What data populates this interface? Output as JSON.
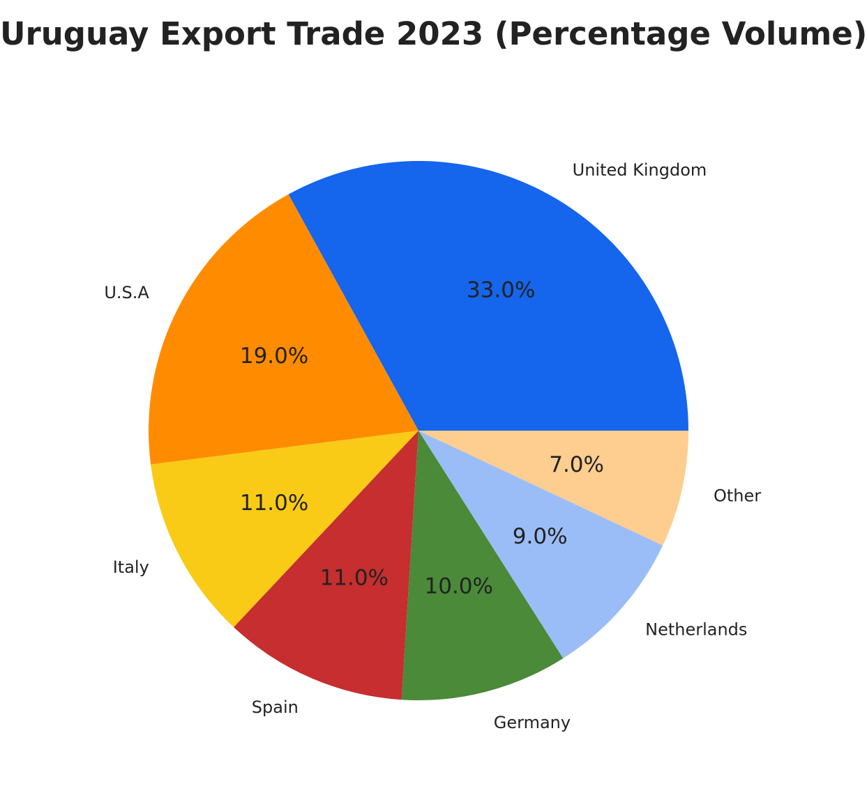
{
  "chart_data": {
    "type": "pie",
    "title": "Uruguay Export Trade 2023 (Percentage Volume)",
    "start_angle_deg": 0,
    "direction": "counterclockwise",
    "slices": [
      {
        "label": "United Kingdom",
        "value": 33.0,
        "pct_label": "33.0%",
        "color": "#1565ed"
      },
      {
        "label": "U.S.A",
        "value": 19.0,
        "pct_label": "19.0%",
        "color": "#ff8c00"
      },
      {
        "label": "Italy",
        "value": 11.0,
        "pct_label": "11.0%",
        "color": "#f9cb16"
      },
      {
        "label": "Spain",
        "value": 11.0,
        "pct_label": "11.0%",
        "color": "#c62e2f"
      },
      {
        "label": "Germany",
        "value": 10.0,
        "pct_label": "10.0%",
        "color": "#4a8a39"
      },
      {
        "label": "Netherlands",
        "value": 9.0,
        "pct_label": "9.0%",
        "color": "#9bbdf7"
      },
      {
        "label": "Other",
        "value": 7.0,
        "pct_label": "7.0%",
        "color": "#fecd90"
      }
    ]
  }
}
